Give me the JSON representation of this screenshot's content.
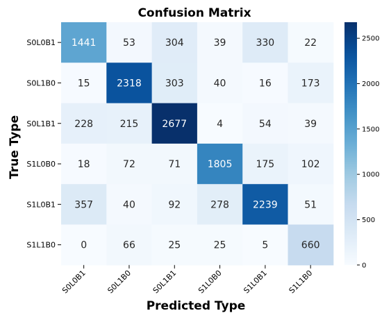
{
  "chart_data": {
    "type": "heatmap",
    "title": "Confusion Matrix",
    "xlabel": "Predicted Type",
    "ylabel": "True Type",
    "x_categories": [
      "S0L0B1",
      "S0L1B0",
      "S0L1B1",
      "S1L0B0",
      "S1L0B1",
      "S1L1B0"
    ],
    "y_categories": [
      "S0L0B1",
      "S0L1B0",
      "S0L1B1",
      "S1L0B0",
      "S1L0B1",
      "S1L1B0"
    ],
    "values": [
      [
        1441,
        53,
        304,
        39,
        330,
        22
      ],
      [
        15,
        2318,
        303,
        40,
        16,
        173
      ],
      [
        228,
        215,
        2677,
        4,
        54,
        39
      ],
      [
        18,
        72,
        71,
        1805,
        175,
        102
      ],
      [
        357,
        40,
        92,
        278,
        2239,
        51
      ],
      [
        0,
        66,
        25,
        25,
        5,
        660
      ]
    ],
    "colorbar": {
      "range": [
        0,
        2677
      ],
      "ticks": [
        0,
        500,
        1000,
        1500,
        2000,
        2500
      ],
      "colormap": "Blues"
    }
  }
}
